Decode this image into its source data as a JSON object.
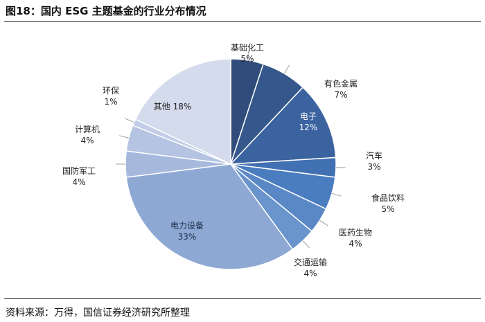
{
  "title": "图18：国内 ESG 主题基金的行业分布情况",
  "source": "资料来源：万得，国信证券经济研究所整理",
  "chart_data": {
    "type": "pie",
    "start": "12 o'clock",
    "direction": "clockwise",
    "categories": [
      "基础化工",
      "有色金属",
      "电子",
      "汽车",
      "食品饮料",
      "医药生物",
      "交通运输",
      "电力设备",
      "国防军工",
      "计算机",
      "环保",
      "其他"
    ],
    "values": [
      5,
      7,
      12,
      3,
      5,
      4,
      4,
      33,
      4,
      4,
      1,
      18
    ],
    "labels": [
      "5%",
      "7%",
      "12%",
      "3%",
      "5%",
      "4%",
      "4%",
      "33%",
      "4%",
      "4%",
      "1%",
      "18%"
    ],
    "colors": [
      "#2f4c7a",
      "#35578b",
      "#3b63a0",
      "#4170b3",
      "#4a7cc0",
      "#5a88c6",
      "#6a94cc",
      "#8ea8d4",
      "#a6b9dd",
      "#b4c4e2",
      "#c2cee7",
      "#d3dbec"
    ]
  }
}
